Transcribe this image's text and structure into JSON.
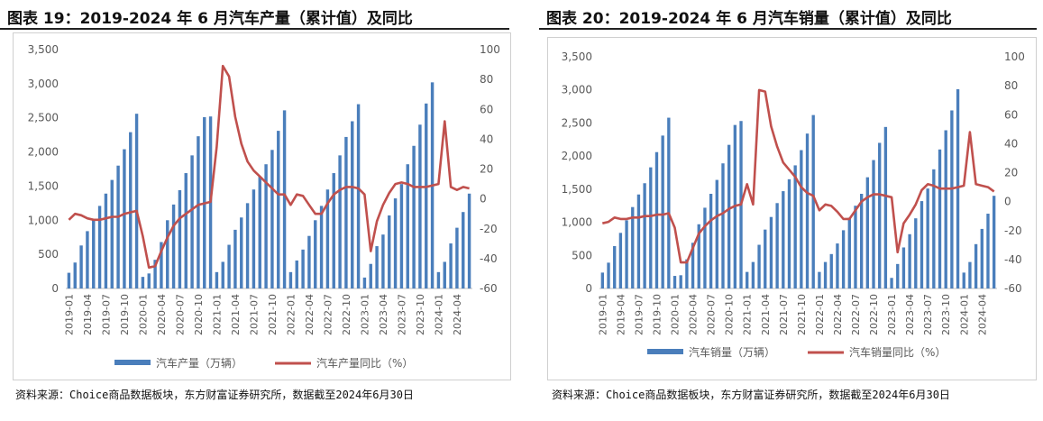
{
  "figures": [
    {
      "title": "图表 19：2019-2024 年 6 月汽车产量（累计值）及同比",
      "source": "资料来源：Choice商品数据板块，东方财富证券研究所，数据截至2024年6月30日"
    },
    {
      "title": "图表 20：2019-2024 年 6 月汽车销量（累计值）及同比",
      "source": "资料来源：Choice商品数据板块，东方财富证券研究所，数据截至2024年6月30日"
    }
  ],
  "colors": {
    "bar": "#4a7ebb",
    "line": "#c0504d",
    "axis": "#bfbfbf",
    "text": "#595959"
  },
  "chart_data": [
    {
      "type": "bar",
      "y_axis_left": {
        "ylim": [
          0,
          3500
        ],
        "ticks": [
          "0",
          "500",
          "1,000",
          "1,500",
          "2,000",
          "2,500",
          "3,000",
          "3,500"
        ]
      },
      "y_axis_right": {
        "ylim": [
          -60,
          100
        ],
        "ticks": [
          "-60",
          "-40",
          "-20",
          "0",
          "20",
          "40",
          "60",
          "80",
          "100"
        ]
      },
      "x_tick_labels": [
        "2019-01",
        "2019-04",
        "2019-07",
        "2019-10",
        "2020-01",
        "2020-04",
        "2020-07",
        "2020-10",
        "2021-01",
        "2021-04",
        "2021-07",
        "2021-10",
        "2022-01",
        "2022-04",
        "2022-07",
        "2022-10",
        "2023-01",
        "2023-04",
        "2023-07",
        "2023-10",
        "2024-01",
        "2024-04"
      ],
      "series": [
        {
          "name": "汽车产量（万辆）",
          "axis": "left",
          "type": "bar",
          "values": [
            230,
            380,
            630,
            840,
            1010,
            1210,
            1390,
            1590,
            1800,
            2040,
            2290,
            2560,
            170,
            220,
            420,
            680,
            1000,
            1230,
            1440,
            1690,
            1950,
            2230,
            2510,
            2520,
            240,
            390,
            640,
            860,
            1040,
            1250,
            1450,
            1640,
            1820,
            2030,
            2310,
            2610,
            240,
            410,
            570,
            770,
            1000,
            1210,
            1450,
            1690,
            1950,
            2220,
            2450,
            2700,
            160,
            360,
            620,
            790,
            1070,
            1320,
            1530,
            1820,
            2090,
            2400,
            2710,
            3020,
            240,
            390,
            660,
            890,
            1120,
            1390
          ]
        },
        {
          "name": "汽车产量同比（%）",
          "axis": "right",
          "type": "line",
          "values": [
            -14,
            -10,
            -11,
            -13,
            -14,
            -14,
            -13,
            -12,
            -12,
            -10,
            -9,
            -8,
            -25,
            -46,
            -45,
            -35,
            -26,
            -18,
            -13,
            -10,
            -7,
            -4,
            -3,
            -2,
            35,
            89,
            82,
            55,
            37,
            25,
            19,
            15,
            11,
            7,
            3,
            3,
            -4,
            3,
            2,
            -4,
            -10,
            -10,
            -3,
            3,
            6,
            8,
            8,
            7,
            3,
            -35,
            -15,
            -4,
            4,
            10,
            11,
            10,
            8,
            8,
            8,
            9,
            10,
            52,
            8,
            6,
            8,
            7
          ]
        }
      ]
    },
    {
      "type": "bar",
      "y_axis_left": {
        "ylim": [
          0,
          3500
        ],
        "ticks": [
          "0",
          "500",
          "1,000",
          "1,500",
          "2,000",
          "2,500",
          "3,000",
          "3,500"
        ]
      },
      "y_axis_right": {
        "ylim": [
          -60,
          100
        ],
        "ticks": [
          "-60",
          "-40",
          "-20",
          "0",
          "20",
          "40",
          "60",
          "80",
          "100"
        ]
      },
      "x_tick_labels": [
        "2019-01",
        "2019-04",
        "2019-07",
        "2019-10",
        "2020-01",
        "2020-04",
        "2020-07",
        "2020-10",
        "2021-01",
        "2021-04",
        "2021-07",
        "2021-10",
        "2022-01",
        "2022-04",
        "2022-07",
        "2022-10",
        "2023-01",
        "2023-04",
        "2023-07",
        "2023-10",
        "2024-01",
        "2024-04"
      ],
      "series": [
        {
          "name": "汽车销量（万辆）",
          "axis": "left",
          "type": "bar",
          "values": [
            240,
            390,
            640,
            840,
            1030,
            1230,
            1420,
            1590,
            1830,
            2060,
            2310,
            2580,
            190,
            200,
            440,
            690,
            970,
            1220,
            1430,
            1640,
            1890,
            2170,
            2470,
            2530,
            250,
            400,
            660,
            890,
            1080,
            1290,
            1470,
            1650,
            1860,
            2090,
            2340,
            2620,
            250,
            400,
            520,
            680,
            880,
            1070,
            1250,
            1430,
            1680,
            1940,
            2200,
            2440,
            160,
            370,
            620,
            820,
            1060,
            1320,
            1510,
            1800,
            2100,
            2390,
            2690,
            3010,
            240,
            400,
            670,
            900,
            1130,
            1400
          ]
        },
        {
          "name": "汽车销量同比（%）",
          "axis": "right",
          "type": "line",
          "values": [
            -15,
            -14,
            -11,
            -12,
            -12,
            -11,
            -11,
            -10,
            -10,
            -9,
            -9,
            -8,
            -18,
            -42,
            -42,
            -32,
            -22,
            -17,
            -13,
            -10,
            -8,
            -5,
            -3,
            -2,
            12,
            -2,
            77,
            76,
            52,
            38,
            27,
            22,
            17,
            10,
            6,
            4,
            -6,
            -2,
            -3,
            -7,
            -12,
            -12,
            -6,
            0,
            3,
            5,
            5,
            4,
            3,
            -35,
            -15,
            -9,
            -2,
            8,
            12,
            11,
            9,
            9,
            9,
            10,
            11,
            48,
            12,
            11,
            10,
            7
          ]
        }
      ]
    }
  ],
  "legends": [
    {
      "bar": "汽车产量（万辆）",
      "line": "汽车产量同比（%）"
    },
    {
      "bar": "汽车销量（万辆）",
      "line": "汽车销量同比（%）"
    }
  ]
}
